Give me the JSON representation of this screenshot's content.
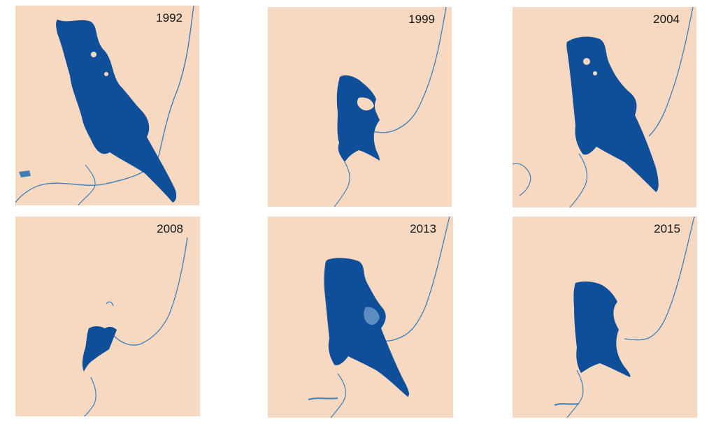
{
  "panels": [
    {
      "year": "1992"
    },
    {
      "year": "1999"
    },
    {
      "year": "2004"
    },
    {
      "year": "2008"
    },
    {
      "year": "2013"
    },
    {
      "year": "2015"
    }
  ],
  "colors": {
    "land": "#f7d9c2",
    "water": "#0f4f9a",
    "river": "#3f7fb8",
    "label": "#111111"
  }
}
